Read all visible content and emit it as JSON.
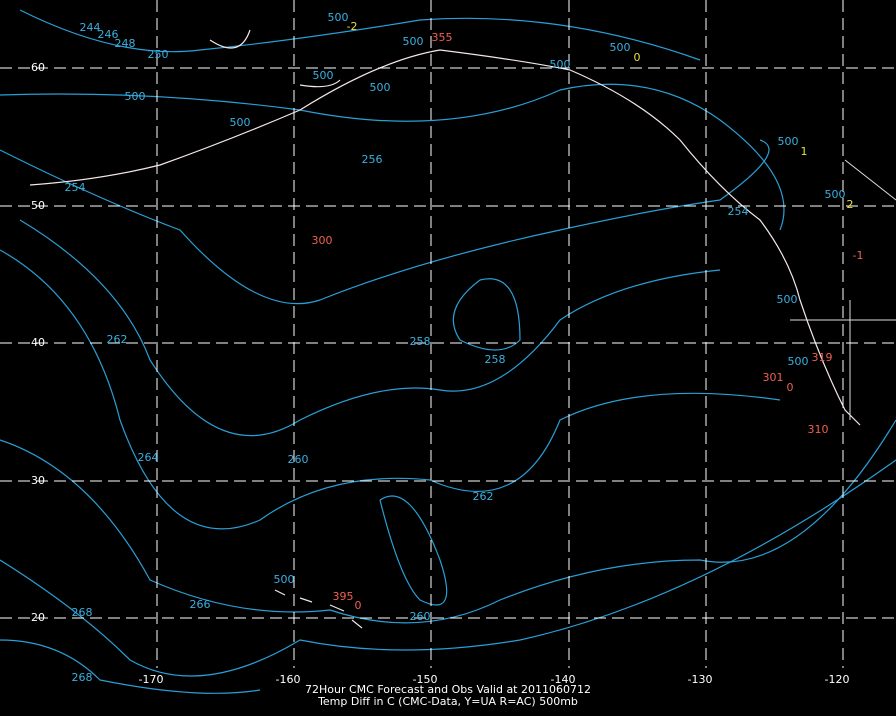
{
  "title": "72Hour CMC Forecast and Obs Valid at 2011060712",
  "subtitle": "Temp Diff in C (CMC-Data, Y=UA R=AC) 500mb",
  "longitude_labels": [
    "-170",
    "-160",
    "-150",
    "-140",
    "-130",
    "-120"
  ],
  "latitude_labels": [
    "60",
    "50",
    "40",
    "30",
    "20"
  ],
  "contour_labels": [
    "244",
    "246",
    "248",
    "250",
    "254",
    "256",
    "258",
    "258",
    "262",
    "264",
    "260",
    "262",
    "266",
    "268",
    "268",
    "260",
    "254"
  ],
  "station_labels": [
    {
      "text": "500",
      "color": "#3ab0e0"
    },
    {
      "text": "-2",
      "color": "#e6e040"
    },
    {
      "text": "500",
      "color": "#3ab0e0"
    },
    {
      "text": "355",
      "color": "#f06050"
    },
    {
      "text": "500",
      "color": "#3ab0e0"
    },
    {
      "text": "0",
      "color": "#e6e040"
    },
    {
      "text": "500",
      "color": "#3ab0e0"
    },
    {
      "text": "500",
      "color": "#3ab0e0"
    },
    {
      "text": "500",
      "color": "#3ab0e0"
    },
    {
      "text": "500",
      "color": "#3ab0e0"
    },
    {
      "text": "500",
      "color": "#3ab0e0"
    },
    {
      "text": "1",
      "color": "#e6e040"
    },
    {
      "text": "500",
      "color": "#3ab0e0"
    },
    {
      "text": "2",
      "color": "#e6e040"
    },
    {
      "text": "300",
      "color": "#f06050"
    },
    {
      "text": "-1",
      "color": "#f06050"
    },
    {
      "text": "500",
      "color": "#3ab0e0"
    },
    {
      "text": "319",
      "color": "#f06050"
    },
    {
      "text": "301",
      "color": "#f06050"
    },
    {
      "text": "0",
      "color": "#f06050"
    },
    {
      "text": "500",
      "color": "#3ab0e0"
    },
    {
      "text": "310",
      "color": "#f06050"
    },
    {
      "text": "500",
      "color": "#3ab0e0"
    },
    {
      "text": "395",
      "color": "#f06050"
    },
    {
      "text": "0",
      "color": "#f06050"
    },
    {
      "text": "500",
      "color": "#3ab0e0"
    }
  ]
}
